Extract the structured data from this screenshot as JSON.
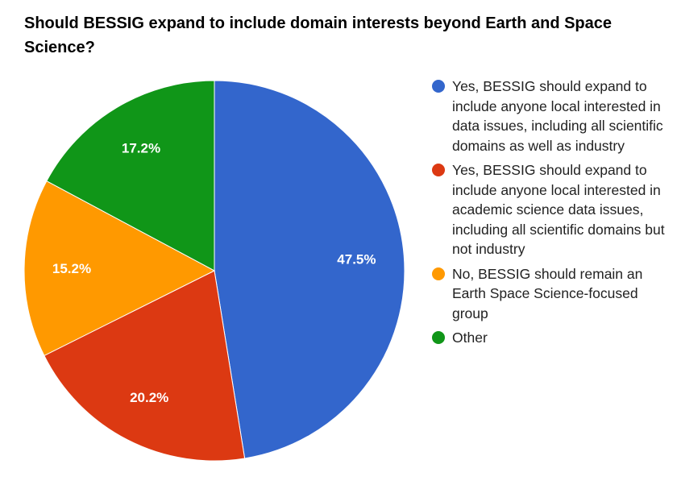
{
  "chart_data": {
    "type": "pie",
    "title": "Should BESSIG expand to include domain interests beyond Earth and Space Science?",
    "slices": [
      {
        "label": "Yes, BESSIG should expand to include anyone local interested in data issues, including all scientific domains as well as industry",
        "value": 47.5,
        "value_label": "47.5%",
        "color": "#3366cc"
      },
      {
        "label": "Yes, BESSIG should expand to include anyone local interested in academic science data issues, including all scientific domains but not industry",
        "value": 20.2,
        "value_label": "20.2%",
        "color": "#dc3912"
      },
      {
        "label": "No, BESSIG should remain an Earth Space Science-focused group",
        "value": 15.2,
        "value_label": "15.2%",
        "color": "#ff9900"
      },
      {
        "label": "Other",
        "value": 17.2,
        "value_label": "17.2%",
        "color": "#109618"
      }
    ],
    "legend_position": "right"
  }
}
